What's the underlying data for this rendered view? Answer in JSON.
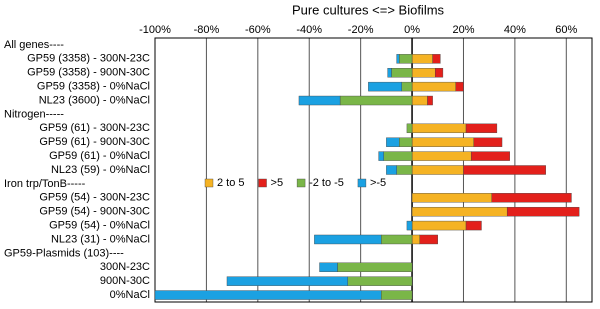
{
  "chart_data": {
    "type": "diverging-stacked-bar",
    "title": "Pure cultures <=> Biofilms",
    "categories": [
      "All genes----",
      "GP59 (3358) - 300N-23C",
      "GP59 (3358) - 900N-30C",
      "GP59 (3358) - 0%NaCl",
      "NL23 (3600) - 0%NaCl",
      "Nitrogen-----",
      "GP59 (61) - 300N-23C",
      "GP59 (61) - 900N-30C",
      "GP59 (61) - 0%NaCl",
      "NL23 (59) - 0%NaCl",
      "Iron trp/TonB-----",
      "GP59 (54) - 300N-23C",
      "GP59 (54) - 900N-30C",
      "GP59 (54) - 0%NaCl",
      "NL23 (31) - 0%NaCl",
      "GP59-Plasmids (103)----",
      "300N-23C",
      "900N-30C",
      "0%NaCl"
    ],
    "series": [
      {
        "name": "2 to 5",
        "color": "#f5b324",
        "values": [
          null,
          8,
          9,
          17,
          6,
          null,
          21,
          24,
          23,
          20,
          null,
          31,
          37,
          21,
          3,
          null,
          0,
          0,
          0
        ]
      },
      {
        "name": ">5",
        "color": "#e3201b",
        "values": [
          null,
          3,
          3,
          3,
          2,
          null,
          12,
          11,
          15,
          32,
          null,
          31,
          28,
          6,
          7,
          null,
          0,
          0,
          0
        ]
      },
      {
        "name": "-2 to -5",
        "color": "#7ab648",
        "values": [
          null,
          -5,
          -8,
          -4,
          -28,
          null,
          -2,
          -5,
          -11,
          -6,
          null,
          0,
          0,
          0,
          -12,
          null,
          -29,
          -25,
          -12
        ]
      },
      {
        "name": ">-5",
        "color": "#1ba1e2",
        "values": [
          null,
          -1,
          -1.5,
          -13,
          -16,
          null,
          0,
          -5,
          -2,
          -4,
          null,
          0,
          0,
          -2,
          -26,
          null,
          -7,
          -47,
          -88
        ]
      }
    ],
    "xlim": [
      -100,
      70
    ],
    "xticks": [
      {
        "value": -100,
        "label": "-100%"
      },
      {
        "value": -80,
        "label": "-80%"
      },
      {
        "value": -60,
        "label": "-60%"
      },
      {
        "value": -40,
        "label": "-40%"
      },
      {
        "value": -20,
        "label": "-20%"
      },
      {
        "value": 0,
        "label": "0%"
      },
      {
        "value": 20,
        "label": "20%"
      },
      {
        "value": 40,
        "label": "40%"
      },
      {
        "value": 60,
        "label": "60%"
      }
    ],
    "grid": true
  }
}
